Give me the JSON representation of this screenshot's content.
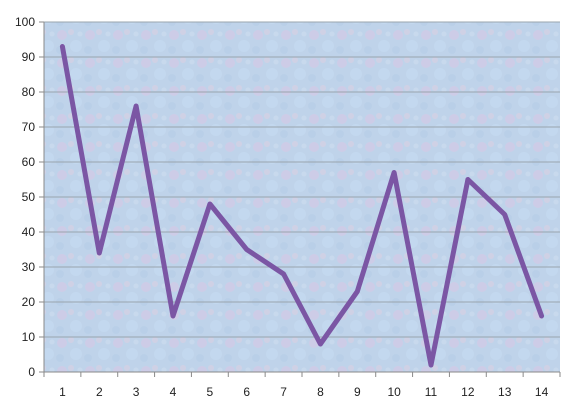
{
  "chart_data": {
    "type": "line",
    "title": "",
    "xlabel": "",
    "ylabel": "",
    "x": [
      1,
      2,
      3,
      4,
      5,
      6,
      7,
      8,
      9,
      10,
      11,
      12,
      13,
      14
    ],
    "series": [
      {
        "values": [
          93,
          34,
          76,
          16,
          48,
          35,
          28,
          8,
          23,
          57,
          2,
          55,
          45,
          16
        ]
      }
    ],
    "ylim": [
      0,
      100
    ],
    "yticks": [
      0,
      10,
      20,
      30,
      40,
      50,
      60,
      70,
      80,
      90,
      100
    ],
    "grid": true,
    "legend": "none",
    "colors": {
      "line": "#7b56a4",
      "grid": "#9aa4ad",
      "plot_background": "#b9cfe6",
      "plot_background_accent": "#d9c5e2"
    }
  }
}
